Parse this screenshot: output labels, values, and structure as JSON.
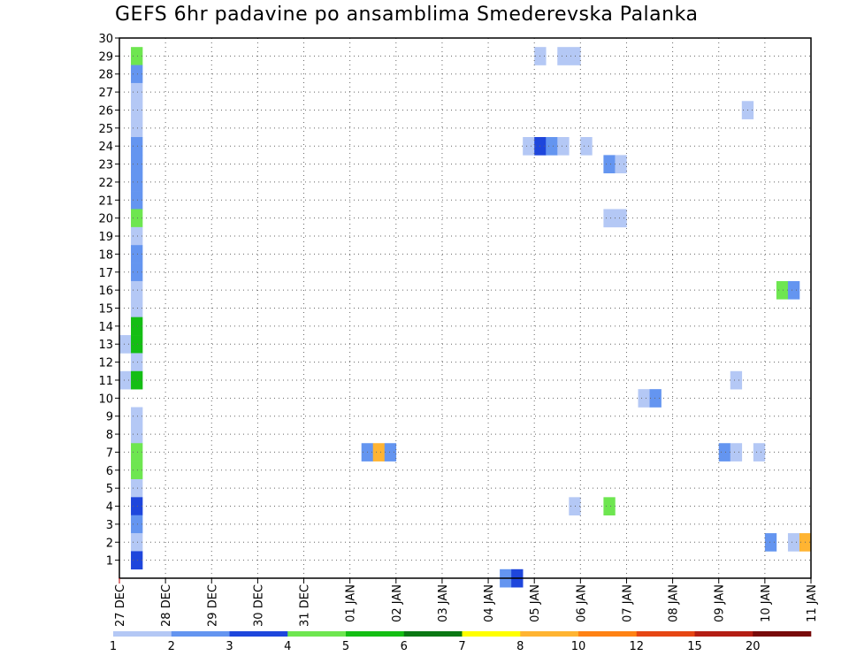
{
  "chart_data": {
    "type": "heatmap",
    "title": "GEFS 6hr padavine po ansamblima Smederevska Palanka",
    "xlabel": "",
    "ylabel": "",
    "x_ticks": [
      "27 DEC",
      "28 DEC",
      "29 DEC",
      "30 DEC",
      "31 DEC",
      "01 JAN",
      "02 JAN",
      "03 JAN",
      "04 JAN",
      "05 JAN",
      "06 JAN",
      "07 JAN",
      "08 JAN",
      "09 JAN",
      "10 JAN",
      "11 JAN"
    ],
    "x_range_days": [
      0,
      15
    ],
    "y_ticks": [
      1,
      2,
      3,
      4,
      5,
      6,
      7,
      8,
      9,
      10,
      11,
      12,
      13,
      14,
      15,
      16,
      17,
      18,
      19,
      20,
      21,
      22,
      23,
      24,
      25,
      26,
      27,
      28,
      29,
      30
    ],
    "y_range": [
      0,
      30
    ],
    "grid": true,
    "colorbar": {
      "labels": [
        "1",
        "2",
        "3",
        "4",
        "5",
        "6",
        "7",
        "8",
        "10",
        "12",
        "15",
        "20"
      ],
      "colors": [
        "#b4c8f5",
        "#6495f0",
        "#1e46dc",
        "#6ee650",
        "#14be14",
        "#0a7814",
        "#ffff00",
        "#ffb432",
        "#ff8214",
        "#e64614",
        "#b41e14",
        "#780a0a"
      ]
    },
    "cells": [
      {
        "t": 0.25,
        "m": 29,
        "c": 4
      },
      {
        "t": 0.25,
        "m": 28,
        "c": 2
      },
      {
        "t": 0.25,
        "m": 27,
        "c": 1
      },
      {
        "t": 0.25,
        "m": 26,
        "c": 1
      },
      {
        "t": 0.25,
        "m": 25,
        "c": 1
      },
      {
        "t": 0.25,
        "m": 24,
        "c": 2
      },
      {
        "t": 0.25,
        "m": 23,
        "c": 2
      },
      {
        "t": 0.25,
        "m": 22,
        "c": 2
      },
      {
        "t": 0.25,
        "m": 21,
        "c": 2
      },
      {
        "t": 0.25,
        "m": 20,
        "c": 4
      },
      {
        "t": 0.25,
        "m": 19,
        "c": 1
      },
      {
        "t": 0.25,
        "m": 18,
        "c": 2
      },
      {
        "t": 0.25,
        "m": 17,
        "c": 2
      },
      {
        "t": 0.25,
        "m": 16,
        "c": 1
      },
      {
        "t": 0.25,
        "m": 15,
        "c": 1
      },
      {
        "t": 0.0,
        "m": 13,
        "c": 1
      },
      {
        "t": 0.25,
        "m": 14,
        "c": 5
      },
      {
        "t": 0.25,
        "m": 13,
        "c": 5
      },
      {
        "t": 0.25,
        "m": 12,
        "c": 1
      },
      {
        "t": 0.0,
        "m": 11,
        "c": 1
      },
      {
        "t": 0.25,
        "m": 11,
        "c": 5
      },
      {
        "t": 0.25,
        "m": 9,
        "c": 1
      },
      {
        "t": 0.25,
        "m": 8,
        "c": 1
      },
      {
        "t": 0.25,
        "m": 7,
        "c": 4
      },
      {
        "t": 0.25,
        "m": 6,
        "c": 4
      },
      {
        "t": 0.25,
        "m": 5,
        "c": 1
      },
      {
        "t": 0.25,
        "m": 4,
        "c": 3
      },
      {
        "t": 0.25,
        "m": 3,
        "c": 2
      },
      {
        "t": 0.25,
        "m": 2,
        "c": 1
      },
      {
        "t": 0.25,
        "m": 1,
        "c": 3
      },
      {
        "t": 5.25,
        "m": 7,
        "c": 2
      },
      {
        "t": 5.5,
        "m": 7,
        "c": 8
      },
      {
        "t": 5.75,
        "m": 7,
        "c": 2
      },
      {
        "t": 8.25,
        "m": 0,
        "c": 2
      },
      {
        "t": 8.5,
        "m": 0,
        "c": 3
      },
      {
        "t": 9.0,
        "m": 29,
        "c": 1
      },
      {
        "t": 9.5,
        "m": 29,
        "c": 1
      },
      {
        "t": 9.75,
        "m": 29,
        "c": 1
      },
      {
        "t": 8.75,
        "m": 24,
        "c": 1
      },
      {
        "t": 9.0,
        "m": 24,
        "c": 3
      },
      {
        "t": 9.25,
        "m": 24,
        "c": 2
      },
      {
        "t": 9.5,
        "m": 24,
        "c": 1
      },
      {
        "t": 10.0,
        "m": 24,
        "c": 1
      },
      {
        "t": 9.75,
        "m": 4,
        "c": 1
      },
      {
        "t": 10.5,
        "m": 23,
        "c": 2
      },
      {
        "t": 10.75,
        "m": 23,
        "c": 1
      },
      {
        "t": 10.5,
        "m": 20,
        "c": 1
      },
      {
        "t": 10.75,
        "m": 20,
        "c": 1
      },
      {
        "t": 10.5,
        "m": 4,
        "c": 4
      },
      {
        "t": 11.25,
        "m": 10,
        "c": 1
      },
      {
        "t": 11.5,
        "m": 10,
        "c": 2
      },
      {
        "t": 13.0,
        "m": 7,
        "c": 2
      },
      {
        "t": 13.25,
        "m": 7,
        "c": 1
      },
      {
        "t": 13.75,
        "m": 7,
        "c": 1
      },
      {
        "t": 13.25,
        "m": 11,
        "c": 1
      },
      {
        "t": 13.5,
        "m": 26,
        "c": 1
      },
      {
        "t": 14.25,
        "m": 16,
        "c": 4
      },
      {
        "t": 14.5,
        "m": 16,
        "c": 2
      },
      {
        "t": 14.0,
        "m": 2,
        "c": 2
      },
      {
        "t": 14.5,
        "m": 2,
        "c": 1
      },
      {
        "t": 14.75,
        "m": 2,
        "c": 8
      }
    ]
  }
}
